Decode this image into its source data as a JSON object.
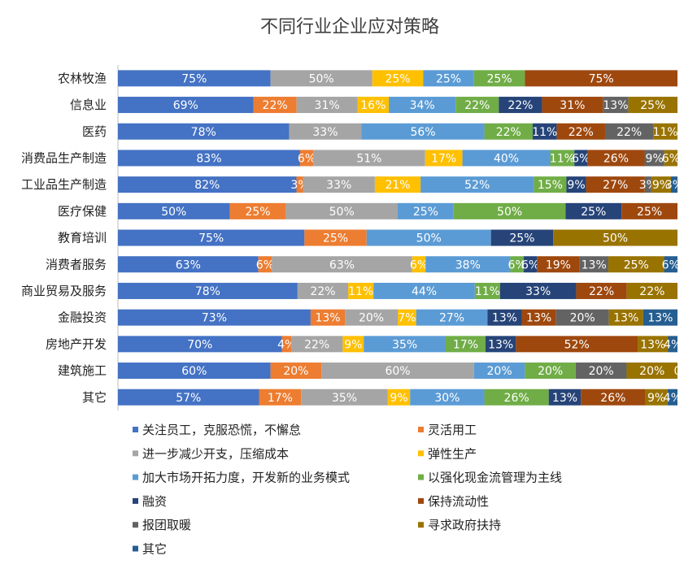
{
  "chart_data": {
    "type": "bar",
    "orientation": "horizontal",
    "stacked": "percent",
    "title": "不同行业企业应对策略",
    "xlabel": "",
    "ylabel": "",
    "grid": false,
    "legend_position": "bottom",
    "categories": [
      "农林牧渔",
      "信息业",
      "医药",
      "消费品生产制造",
      "工业品生产制造",
      "医疗保健",
      "教育培训",
      "消费者服务",
      "商业贸易及服务",
      "金融投资",
      "房地产开发",
      "建筑施工",
      "其它"
    ],
    "series": [
      {
        "name": "关注员工，克服恐慌，不懈怠",
        "color": "#4472C4",
        "values": [
          75,
          69,
          78,
          83,
          82,
          50,
          75,
          63,
          78,
          73,
          70,
          60,
          57
        ]
      },
      {
        "name": "灵活用工",
        "color": "#ED7D31",
        "values": [
          null,
          22,
          null,
          6,
          3,
          25,
          25,
          6,
          null,
          13,
          4,
          20,
          17
        ]
      },
      {
        "name": "进一步减少开支，压缩成本",
        "color": "#A5A5A5",
        "values": [
          50,
          31,
          33,
          51,
          33,
          50,
          null,
          63,
          22,
          20,
          22,
          60,
          35
        ]
      },
      {
        "name": "弹性生产",
        "color": "#FFC000",
        "values": [
          25,
          16,
          null,
          17,
          21,
          null,
          null,
          6,
          11,
          7,
          9,
          null,
          9
        ]
      },
      {
        "name": "加大市场开拓力度，开发新的业务模式",
        "color": "#5B9BD5",
        "values": [
          25,
          34,
          56,
          40,
          52,
          25,
          50,
          38,
          44,
          27,
          35,
          20,
          30
        ]
      },
      {
        "name": "以强化现金流管理为主线",
        "color": "#70AD47",
        "values": [
          25,
          22,
          22,
          11,
          15,
          50,
          null,
          6,
          11,
          null,
          17,
          20,
          26
        ]
      },
      {
        "name": "融资",
        "color": "#264478",
        "values": [
          null,
          22,
          11,
          6,
          9,
          25,
          25,
          6,
          33,
          13,
          13,
          null,
          13
        ]
      },
      {
        "name": "保持流动性",
        "color": "#9E480E",
        "values": [
          75,
          31,
          22,
          26,
          27,
          25,
          null,
          19,
          22,
          13,
          52,
          null,
          26
        ]
      },
      {
        "name": "报团取暖",
        "color": "#636363",
        "values": [
          null,
          13,
          22,
          9,
          3,
          null,
          null,
          13,
          null,
          20,
          null,
          20,
          null
        ]
      },
      {
        "name": "寻求政府扶持",
        "color": "#997300",
        "values": [
          null,
          25,
          11,
          6,
          9,
          null,
          50,
          25,
          22,
          13,
          13,
          20,
          9
        ]
      },
      {
        "name": "其它",
        "color": "#255E91",
        "values": [
          null,
          null,
          null,
          null,
          3,
          null,
          null,
          6,
          null,
          13,
          4,
          0,
          4
        ]
      }
    ]
  }
}
